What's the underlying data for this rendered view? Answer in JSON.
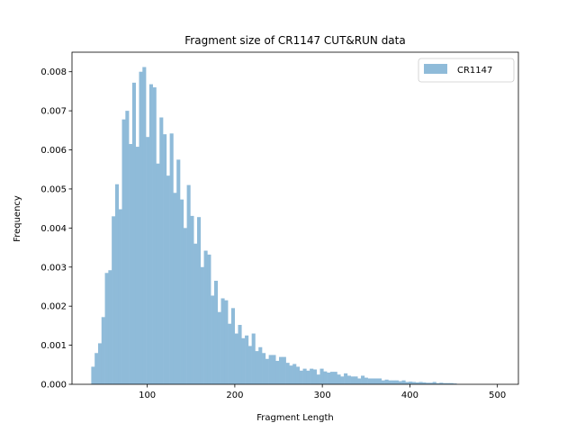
{
  "chart_data": {
    "type": "bar",
    "title": "Fragment size of CR1147 CUT&RUN data",
    "xlabel": "Fragment Length",
    "ylabel": "Frequency",
    "xlim": [
      14,
      524
    ],
    "ylim": [
      0,
      0.0085
    ],
    "xticks": [
      100,
      200,
      300,
      400,
      500
    ],
    "xtick_labels": [
      "100",
      "200",
      "300",
      "400",
      "500"
    ],
    "yticks": [
      0,
      0.001,
      0.002,
      0.003,
      0.004,
      0.005,
      0.006,
      0.007,
      0.008
    ],
    "ytick_labels": [
      "0.000",
      "0.001",
      "0.002",
      "0.003",
      "0.004",
      "0.005",
      "0.006",
      "0.007",
      "0.008"
    ],
    "grid": false,
    "legend_position": "top-right",
    "bin_start": 36,
    "bin_width": 3.9,
    "series": [
      {
        "name": "CR1147",
        "color": "#8fbbd9",
        "values": [
          0.00045,
          0.0008,
          0.00105,
          0.00172,
          0.00285,
          0.00292,
          0.0043,
          0.00512,
          0.00448,
          0.00678,
          0.007,
          0.00615,
          0.00772,
          0.00608,
          0.008,
          0.00812,
          0.00633,
          0.00768,
          0.0076,
          0.00565,
          0.00683,
          0.0064,
          0.00534,
          0.00642,
          0.0049,
          0.00575,
          0.00473,
          0.004,
          0.0051,
          0.00431,
          0.0036,
          0.00428,
          0.003,
          0.00342,
          0.00332,
          0.00227,
          0.00265,
          0.00185,
          0.0022,
          0.00215,
          0.00155,
          0.00195,
          0.0013,
          0.00152,
          0.00118,
          0.00125,
          0.00098,
          0.0013,
          0.00085,
          0.00095,
          0.0008,
          0.00065,
          0.00075,
          0.00075,
          0.0006,
          0.0007,
          0.0007,
          0.00055,
          0.00048,
          0.00052,
          0.00045,
          0.00035,
          0.0004,
          0.00035,
          0.0004,
          0.00038,
          0.00025,
          0.0004,
          0.00033,
          0.0003,
          0.00032,
          0.00032,
          0.00025,
          0.0002,
          0.00028,
          0.00022,
          0.0002,
          0.0002,
          0.00015,
          0.00022,
          0.00017,
          0.00015,
          0.00015,
          0.00015,
          0.00015,
          0.0001,
          0.00012,
          0.0001,
          0.0001,
          0.0001,
          8e-05,
          0.0001,
          6e-05,
          7e-05,
          6e-05,
          5e-05,
          6e-05,
          5e-05,
          4e-05,
          4e-05,
          6e-05,
          3e-05,
          4e-05,
          3e-05,
          3e-05,
          3e-05,
          2e-05
        ]
      }
    ]
  }
}
